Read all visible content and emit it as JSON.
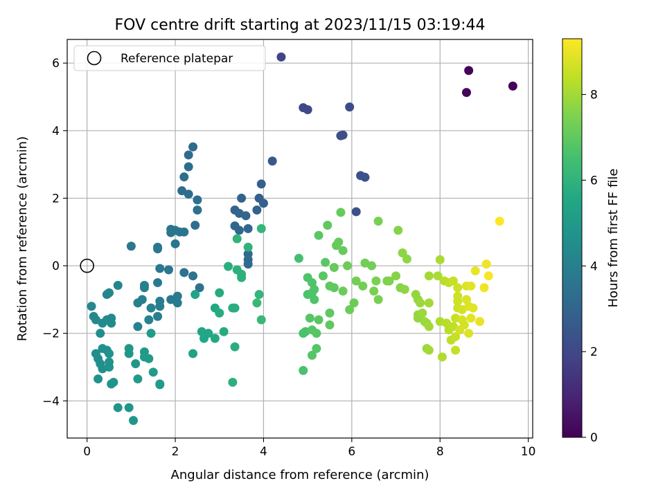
{
  "chart_data": {
    "type": "scatter",
    "title": "FOV centre drift starting at 2023/11/15 03:19:44",
    "xlabel": "Angular distance from reference (arcmin)",
    "ylabel": "Rotation from reference (arcmin)",
    "xlim": [
      -0.45,
      10.1
    ],
    "ylim": [
      -5.1,
      6.7
    ],
    "xticks": [
      0,
      2,
      4,
      6,
      8,
      10
    ],
    "yticks": [
      -4,
      -2,
      0,
      2,
      4,
      6
    ],
    "grid": true,
    "legend": {
      "placement": "top-left",
      "entries": [
        {
          "label": "Reference platepar",
          "marker": "open-circle"
        }
      ]
    },
    "reference_point": {
      "x": 0,
      "y": 0
    },
    "colorbar": {
      "label": "Hours from first FF file",
      "range": [
        0,
        9.3
      ],
      "ticks": [
        0,
        2,
        4,
        6,
        8
      ],
      "colormap": "viridis"
    },
    "points": [
      {
        "x": 8.65,
        "y": 5.78,
        "c": 0.1
      },
      {
        "x": 9.65,
        "y": 5.32,
        "c": 0.1
      },
      {
        "x": 8.6,
        "y": 5.13,
        "c": 0.1
      },
      {
        "x": 4.4,
        "y": 6.18,
        "c": 1.9
      },
      {
        "x": 4.9,
        "y": 4.68,
        "c": 2.0
      },
      {
        "x": 5.0,
        "y": 4.62,
        "c": 2.0
      },
      {
        "x": 5.95,
        "y": 4.7,
        "c": 2.1
      },
      {
        "x": 5.75,
        "y": 3.85,
        "c": 2.2
      },
      {
        "x": 5.8,
        "y": 3.87,
        "c": 2.2
      },
      {
        "x": 6.2,
        "y": 2.67,
        "c": 2.3
      },
      {
        "x": 6.3,
        "y": 2.62,
        "c": 2.3
      },
      {
        "x": 6.1,
        "y": 1.6,
        "c": 2.3
      },
      {
        "x": 4.2,
        "y": 3.1,
        "c": 2.6
      },
      {
        "x": 3.95,
        "y": 2.42,
        "c": 2.8
      },
      {
        "x": 3.9,
        "y": 2.0,
        "c": 2.8
      },
      {
        "x": 4.0,
        "y": 1.85,
        "c": 2.8
      },
      {
        "x": 3.85,
        "y": 1.65,
        "c": 2.9
      },
      {
        "x": 3.5,
        "y": 2.0,
        "c": 2.9
      },
      {
        "x": 3.35,
        "y": 1.65,
        "c": 3.0
      },
      {
        "x": 3.45,
        "y": 1.55,
        "c": 3.0
      },
      {
        "x": 3.6,
        "y": 1.48,
        "c": 3.0
      },
      {
        "x": 3.35,
        "y": 1.18,
        "c": 3.1
      },
      {
        "x": 3.45,
        "y": 1.05,
        "c": 3.1
      },
      {
        "x": 3.65,
        "y": 1.1,
        "c": 3.1
      },
      {
        "x": 3.65,
        "y": 0.35,
        "c": 3.2
      },
      {
        "x": 3.65,
        "y": 0.18,
        "c": 3.2
      },
      {
        "x": 3.65,
        "y": 0.05,
        "c": 3.2
      },
      {
        "x": 2.4,
        "y": 3.52,
        "c": 3.2
      },
      {
        "x": 2.3,
        "y": 3.28,
        "c": 3.2
      },
      {
        "x": 2.3,
        "y": 2.93,
        "c": 3.3
      },
      {
        "x": 2.2,
        "y": 2.63,
        "c": 3.3
      },
      {
        "x": 2.15,
        "y": 2.22,
        "c": 3.3
      },
      {
        "x": 2.3,
        "y": 2.12,
        "c": 3.3
      },
      {
        "x": 2.5,
        "y": 1.95,
        "c": 3.4
      },
      {
        "x": 2.5,
        "y": 1.65,
        "c": 3.4
      },
      {
        "x": 2.45,
        "y": 1.2,
        "c": 3.4
      },
      {
        "x": 2.55,
        "y": -0.65,
        "c": 3.5
      },
      {
        "x": 2.4,
        "y": -0.3,
        "c": 3.5
      },
      {
        "x": 2.2,
        "y": -0.2,
        "c": 3.5
      },
      {
        "x": 2.0,
        "y": 1.05,
        "c": 3.6
      },
      {
        "x": 2.1,
        "y": 1.0,
        "c": 3.6
      },
      {
        "x": 2.2,
        "y": 1.0,
        "c": 3.6
      },
      {
        "x": 1.9,
        "y": 1.08,
        "c": 3.6
      },
      {
        "x": 1.9,
        "y": 0.98,
        "c": 3.6
      },
      {
        "x": 2.0,
        "y": 0.65,
        "c": 3.6
      },
      {
        "x": 1.6,
        "y": 0.55,
        "c": 3.7
      },
      {
        "x": 1.6,
        "y": 0.5,
        "c": 3.7
      },
      {
        "x": 1.0,
        "y": 0.58,
        "c": 3.7
      },
      {
        "x": 1.65,
        "y": -0.08,
        "c": 3.7
      },
      {
        "x": 1.85,
        "y": -0.12,
        "c": 3.7
      },
      {
        "x": 1.6,
        "y": -0.5,
        "c": 3.8
      },
      {
        "x": 2.05,
        "y": -0.9,
        "c": 3.8
      },
      {
        "x": 2.05,
        "y": -1.1,
        "c": 3.8
      },
      {
        "x": 1.9,
        "y": -1.0,
        "c": 3.8
      },
      {
        "x": 1.65,
        "y": -1.05,
        "c": 3.9
      },
      {
        "x": 1.65,
        "y": -1.2,
        "c": 3.9
      },
      {
        "x": 1.6,
        "y": -1.5,
        "c": 3.9
      },
      {
        "x": 1.3,
        "y": -0.65,
        "c": 4.0
      },
      {
        "x": 1.3,
        "y": -0.58,
        "c": 4.0
      },
      {
        "x": 1.25,
        "y": -1.0,
        "c": 4.0
      },
      {
        "x": 1.15,
        "y": -1.1,
        "c": 4.0
      },
      {
        "x": 1.45,
        "y": -1.25,
        "c": 4.1
      },
      {
        "x": 1.4,
        "y": -1.6,
        "c": 4.1
      },
      {
        "x": 1.15,
        "y": -1.8,
        "c": 4.1
      },
      {
        "x": 0.7,
        "y": -0.58,
        "c": 4.2
      },
      {
        "x": 0.5,
        "y": -0.8,
        "c": 4.2
      },
      {
        "x": 0.45,
        "y": -0.85,
        "c": 4.2
      },
      {
        "x": 0.1,
        "y": -1.2,
        "c": 4.3
      },
      {
        "x": 0.15,
        "y": -1.5,
        "c": 4.3
      },
      {
        "x": 0.2,
        "y": -1.6,
        "c": 4.3
      },
      {
        "x": 0.35,
        "y": -1.7,
        "c": 4.4
      },
      {
        "x": 0.55,
        "y": -1.55,
        "c": 4.4
      },
      {
        "x": 0.55,
        "y": -1.7,
        "c": 4.4
      },
      {
        "x": 0.45,
        "y": -1.6,
        "c": 4.4
      },
      {
        "x": 0.3,
        "y": -2.0,
        "c": 4.5
      },
      {
        "x": 0.2,
        "y": -2.6,
        "c": 4.5
      },
      {
        "x": 0.25,
        "y": -2.75,
        "c": 4.5
      },
      {
        "x": 0.3,
        "y": -2.9,
        "c": 4.6
      },
      {
        "x": 0.35,
        "y": -3.05,
        "c": 4.6
      },
      {
        "x": 0.45,
        "y": -2.5,
        "c": 4.6
      },
      {
        "x": 0.35,
        "y": -2.45,
        "c": 4.6
      },
      {
        "x": 0.5,
        "y": -2.6,
        "c": 4.7
      },
      {
        "x": 0.5,
        "y": -2.85,
        "c": 4.7
      },
      {
        "x": 0.5,
        "y": -3.0,
        "c": 4.7
      },
      {
        "x": 0.25,
        "y": -3.35,
        "c": 4.7
      },
      {
        "x": 0.55,
        "y": -3.5,
        "c": 4.8
      },
      {
        "x": 0.6,
        "y": -3.45,
        "c": 4.8
      },
      {
        "x": 0.7,
        "y": -4.2,
        "c": 4.8
      },
      {
        "x": 0.95,
        "y": -4.2,
        "c": 4.8
      },
      {
        "x": 1.05,
        "y": -4.58,
        "c": 4.9
      },
      {
        "x": 0.95,
        "y": -2.45,
        "c": 4.9
      },
      {
        "x": 0.95,
        "y": -2.6,
        "c": 4.9
      },
      {
        "x": 1.1,
        "y": -2.9,
        "c": 4.9
      },
      {
        "x": 1.15,
        "y": -3.35,
        "c": 5.0
      },
      {
        "x": 1.3,
        "y": -2.55,
        "c": 5.0
      },
      {
        "x": 1.3,
        "y": -2.7,
        "c": 5.0
      },
      {
        "x": 1.4,
        "y": -2.75,
        "c": 5.0
      },
      {
        "x": 1.5,
        "y": -3.15,
        "c": 5.1
      },
      {
        "x": 1.45,
        "y": -2.0,
        "c": 5.1
      },
      {
        "x": 1.65,
        "y": -3.5,
        "c": 5.1
      },
      {
        "x": 1.65,
        "y": -3.52,
        "c": 5.1
      },
      {
        "x": 2.4,
        "y": -2.6,
        "c": 5.3
      },
      {
        "x": 2.45,
        "y": -0.85,
        "c": 5.4
      },
      {
        "x": 2.6,
        "y": -1.95,
        "c": 5.5
      },
      {
        "x": 2.65,
        "y": -2.15,
        "c": 5.5
      },
      {
        "x": 2.75,
        "y": -2.0,
        "c": 5.5
      },
      {
        "x": 2.9,
        "y": -2.15,
        "c": 5.6
      },
      {
        "x": 2.9,
        "y": -1.25,
        "c": 5.6
      },
      {
        "x": 3.0,
        "y": -0.8,
        "c": 5.7
      },
      {
        "x": 3.0,
        "y": -1.4,
        "c": 5.7
      },
      {
        "x": 3.1,
        "y": -1.95,
        "c": 5.7
      },
      {
        "x": 3.2,
        "y": -0.02,
        "c": 5.8
      },
      {
        "x": 3.3,
        "y": -1.25,
        "c": 5.8
      },
      {
        "x": 3.35,
        "y": -1.25,
        "c": 5.8
      },
      {
        "x": 3.35,
        "y": -2.4,
        "c": 5.8
      },
      {
        "x": 3.3,
        "y": -3.45,
        "c": 5.9
      },
      {
        "x": 3.4,
        "y": -0.12,
        "c": 5.9
      },
      {
        "x": 3.5,
        "y": -0.25,
        "c": 5.9
      },
      {
        "x": 3.5,
        "y": -0.35,
        "c": 5.9
      },
      {
        "x": 3.4,
        "y": 0.8,
        "c": 6.0
      },
      {
        "x": 3.65,
        "y": 0.55,
        "c": 6.0
      },
      {
        "x": 3.95,
        "y": 1.1,
        "c": 6.1
      },
      {
        "x": 3.9,
        "y": -0.85,
        "c": 6.1
      },
      {
        "x": 3.85,
        "y": -1.1,
        "c": 6.2
      },
      {
        "x": 3.95,
        "y": -1.6,
        "c": 6.2
      },
      {
        "x": 4.8,
        "y": 0.22,
        "c": 6.5
      },
      {
        "x": 4.95,
        "y": -1.95,
        "c": 6.6
      },
      {
        "x": 4.9,
        "y": -2.0,
        "c": 6.6
      },
      {
        "x": 4.9,
        "y": -3.1,
        "c": 6.6
      },
      {
        "x": 5.0,
        "y": -0.85,
        "c": 6.6
      },
      {
        "x": 5.1,
        "y": -0.8,
        "c": 6.7
      },
      {
        "x": 5.0,
        "y": -0.35,
        "c": 6.7
      },
      {
        "x": 5.1,
        "y": -0.5,
        "c": 6.7
      },
      {
        "x": 5.15,
        "y": -0.7,
        "c": 6.7
      },
      {
        "x": 5.15,
        "y": -1.0,
        "c": 6.7
      },
      {
        "x": 5.05,
        "y": -1.55,
        "c": 6.8
      },
      {
        "x": 5.1,
        "y": -1.9,
        "c": 6.8
      },
      {
        "x": 5.2,
        "y": -2.0,
        "c": 6.8
      },
      {
        "x": 5.1,
        "y": -2.65,
        "c": 6.8
      },
      {
        "x": 5.2,
        "y": -2.45,
        "c": 6.8
      },
      {
        "x": 5.25,
        "y": -1.6,
        "c": 6.9
      },
      {
        "x": 5.25,
        "y": 0.9,
        "c": 6.9
      },
      {
        "x": 5.35,
        "y": -0.3,
        "c": 6.9
      },
      {
        "x": 5.4,
        "y": 0.1,
        "c": 6.9
      },
      {
        "x": 5.45,
        "y": 1.2,
        "c": 7.0
      },
      {
        "x": 5.5,
        "y": -0.6,
        "c": 7.0
      },
      {
        "x": 5.5,
        "y": -1.4,
        "c": 7.0
      },
      {
        "x": 5.5,
        "y": -1.75,
        "c": 7.0
      },
      {
        "x": 5.6,
        "y": -0.65,
        "c": 7.0
      },
      {
        "x": 5.6,
        "y": -0.05,
        "c": 7.1
      },
      {
        "x": 5.65,
        "y": 0.6,
        "c": 7.1
      },
      {
        "x": 5.7,
        "y": 0.7,
        "c": 7.1
      },
      {
        "x": 5.75,
        "y": 1.58,
        "c": 7.1
      },
      {
        "x": 5.8,
        "y": 0.45,
        "c": 7.1
      },
      {
        "x": 5.8,
        "y": -0.75,
        "c": 7.2
      },
      {
        "x": 5.9,
        "y": 0.0,
        "c": 7.2
      },
      {
        "x": 5.95,
        "y": -1.3,
        "c": 7.2
      },
      {
        "x": 6.05,
        "y": -1.1,
        "c": 7.2
      },
      {
        "x": 6.1,
        "y": -0.45,
        "c": 7.3
      },
      {
        "x": 6.25,
        "y": -0.6,
        "c": 7.3
      },
      {
        "x": 6.3,
        "y": 0.08,
        "c": 7.3
      },
      {
        "x": 6.45,
        "y": 0.0,
        "c": 7.3
      },
      {
        "x": 6.5,
        "y": -0.75,
        "c": 7.4
      },
      {
        "x": 6.55,
        "y": -0.45,
        "c": 7.4
      },
      {
        "x": 6.6,
        "y": -1.0,
        "c": 7.4
      },
      {
        "x": 6.6,
        "y": 1.32,
        "c": 7.4
      },
      {
        "x": 6.8,
        "y": -0.45,
        "c": 7.5
      },
      {
        "x": 6.85,
        "y": -0.45,
        "c": 7.5
      },
      {
        "x": 7.0,
        "y": -0.3,
        "c": 7.6
      },
      {
        "x": 7.05,
        "y": 1.05,
        "c": 7.6
      },
      {
        "x": 7.1,
        "y": -0.65,
        "c": 7.6
      },
      {
        "x": 7.15,
        "y": 0.38,
        "c": 7.7
      },
      {
        "x": 7.2,
        "y": -0.7,
        "c": 7.7
      },
      {
        "x": 7.25,
        "y": 0.2,
        "c": 7.7
      },
      {
        "x": 7.45,
        "y": -0.85,
        "c": 7.8
      },
      {
        "x": 7.5,
        "y": -1.0,
        "c": 7.8
      },
      {
        "x": 7.5,
        "y": -1.45,
        "c": 7.8
      },
      {
        "x": 7.5,
        "y": -1.55,
        "c": 7.8
      },
      {
        "x": 7.55,
        "y": -1.1,
        "c": 7.9
      },
      {
        "x": 7.6,
        "y": -1.4,
        "c": 7.9
      },
      {
        "x": 7.65,
        "y": -1.65,
        "c": 7.9
      },
      {
        "x": 7.7,
        "y": -1.7,
        "c": 7.9
      },
      {
        "x": 7.7,
        "y": -2.45,
        "c": 7.9
      },
      {
        "x": 7.75,
        "y": -1.1,
        "c": 8.0
      },
      {
        "x": 7.75,
        "y": -1.8,
        "c": 8.0
      },
      {
        "x": 7.75,
        "y": -2.5,
        "c": 8.0
      },
      {
        "x": 7.75,
        "y": -0.3,
        "c": 8.0
      },
      {
        "x": 7.95,
        "y": -0.3,
        "c": 8.1
      },
      {
        "x": 8.0,
        "y": 0.18,
        "c": 8.1
      },
      {
        "x": 8.0,
        "y": -1.65,
        "c": 8.2
      },
      {
        "x": 8.05,
        "y": -2.7,
        "c": 8.2
      },
      {
        "x": 8.1,
        "y": -0.45,
        "c": 8.3
      },
      {
        "x": 8.15,
        "y": -1.7,
        "c": 8.3
      },
      {
        "x": 8.2,
        "y": -1.9,
        "c": 8.3
      },
      {
        "x": 8.2,
        "y": -0.5,
        "c": 8.4
      },
      {
        "x": 8.25,
        "y": -2.2,
        "c": 8.4
      },
      {
        "x": 8.3,
        "y": -1.8,
        "c": 8.4
      },
      {
        "x": 8.3,
        "y": -0.45,
        "c": 8.5
      },
      {
        "x": 8.35,
        "y": -1.55,
        "c": 8.5
      },
      {
        "x": 8.35,
        "y": -2.5,
        "c": 8.5
      },
      {
        "x": 8.35,
        "y": -2.1,
        "c": 8.5
      },
      {
        "x": 8.4,
        "y": -1.05,
        "c": 8.6
      },
      {
        "x": 8.4,
        "y": -1.25,
        "c": 8.6
      },
      {
        "x": 8.4,
        "y": -0.9,
        "c": 8.6
      },
      {
        "x": 8.4,
        "y": -0.65,
        "c": 8.6
      },
      {
        "x": 8.45,
        "y": -1.9,
        "c": 8.7
      },
      {
        "x": 8.5,
        "y": -1.3,
        "c": 8.7
      },
      {
        "x": 8.5,
        "y": -1.6,
        "c": 8.7
      },
      {
        "x": 8.55,
        "y": -1.75,
        "c": 8.7
      },
      {
        "x": 8.6,
        "y": -0.6,
        "c": 8.8
      },
      {
        "x": 8.6,
        "y": -1.0,
        "c": 8.8
      },
      {
        "x": 8.65,
        "y": -1.2,
        "c": 8.8
      },
      {
        "x": 8.65,
        "y": -2.0,
        "c": 8.8
      },
      {
        "x": 8.7,
        "y": -1.55,
        "c": 8.9
      },
      {
        "x": 8.7,
        "y": -0.6,
        "c": 8.9
      },
      {
        "x": 8.75,
        "y": -1.25,
        "c": 8.9
      },
      {
        "x": 8.8,
        "y": -0.15,
        "c": 9.0
      },
      {
        "x": 8.9,
        "y": -1.65,
        "c": 9.0
      },
      {
        "x": 9.0,
        "y": -0.65,
        "c": 9.1
      },
      {
        "x": 9.05,
        "y": 0.05,
        "c": 9.1
      },
      {
        "x": 9.1,
        "y": -0.3,
        "c": 9.2
      },
      {
        "x": 9.35,
        "y": 1.32,
        "c": 9.3
      }
    ]
  }
}
